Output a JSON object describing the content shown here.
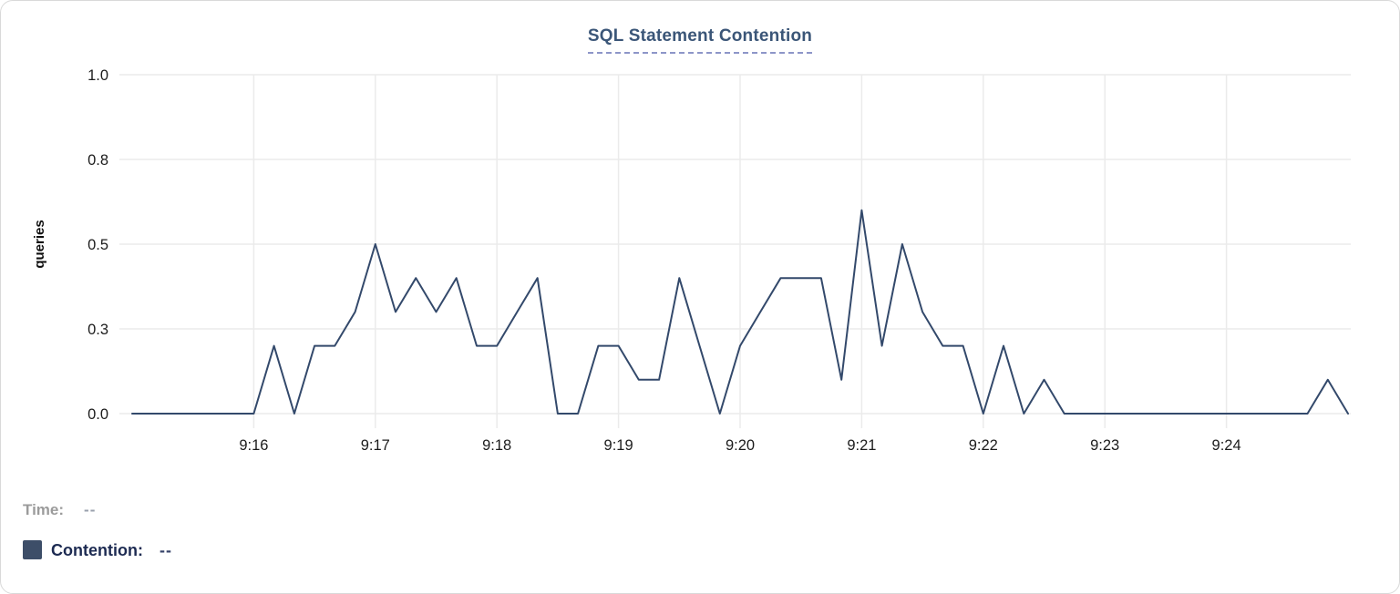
{
  "card": {
    "title": "SQL Statement Contention"
  },
  "legend": {
    "time_label": "Time:",
    "time_value": "--",
    "contention_label": "Contention:",
    "contention_value": "--",
    "swatch_color": "#3d4e68"
  },
  "colors": {
    "line": "#33496b",
    "grid": "#ebebeb",
    "tick_text": "#1c1c1c",
    "axis_label_text": "#0f0f0f",
    "title": "#3b5678",
    "title_underline": "#8d96c8"
  },
  "chart_data": {
    "type": "line",
    "title": "SQL Statement Contention",
    "xlabel": "",
    "ylabel": "queries",
    "ylim": [
      0,
      1
    ],
    "grid": true,
    "legend_position": "bottom-left",
    "x": [
      "9:15:00",
      "9:15:10",
      "9:15:20",
      "9:15:30",
      "9:15:40",
      "9:15:50",
      "9:16:00",
      "9:16:10",
      "9:16:20",
      "9:16:30",
      "9:16:40",
      "9:16:50",
      "9:17:00",
      "9:17:10",
      "9:17:20",
      "9:17:30",
      "9:17:40",
      "9:17:50",
      "9:18:00",
      "9:18:10",
      "9:18:20",
      "9:18:30",
      "9:18:40",
      "9:18:50",
      "9:19:00",
      "9:19:10",
      "9:19:20",
      "9:19:30",
      "9:19:40",
      "9:19:50",
      "9:20:00",
      "9:20:10",
      "9:20:20",
      "9:20:30",
      "9:20:40",
      "9:20:50",
      "9:21:00",
      "9:21:10",
      "9:21:20",
      "9:21:30",
      "9:21:40",
      "9:21:50",
      "9:22:00",
      "9:22:10",
      "9:22:20",
      "9:22:30",
      "9:22:40",
      "9:22:50",
      "9:23:00",
      "9:23:10",
      "9:23:20",
      "9:23:30",
      "9:23:40",
      "9:23:50",
      "9:24:00",
      "9:24:10",
      "9:24:20",
      "9:24:30",
      "9:24:40",
      "9:24:50",
      "9:25:00"
    ],
    "series": [
      {
        "name": "Contention",
        "color": "#33496b",
        "values": [
          0,
          0,
          0,
          0,
          0,
          0,
          0,
          0.2,
          0,
          0.2,
          0.2,
          0.3,
          0.5,
          0.3,
          0.4,
          0.3,
          0.4,
          0.2,
          0.2,
          0.3,
          0.4,
          0,
          0,
          0.2,
          0.2,
          0.1,
          0.1,
          0.4,
          0.2,
          0,
          0.2,
          0.3,
          0.4,
          0.4,
          0.4,
          0.1,
          0.6,
          0.2,
          0.5,
          0.3,
          0.2,
          0.2,
          0,
          0.2,
          0,
          0.1,
          0,
          0,
          0,
          0,
          0,
          0,
          0,
          0,
          0,
          0,
          0,
          0,
          0,
          0.1,
          0
        ]
      }
    ],
    "x_tick_labels": [
      "9:16",
      "9:17",
      "9:18",
      "9:19",
      "9:20",
      "9:21",
      "9:22",
      "9:23",
      "9:24"
    ],
    "y_ticks": [
      {
        "value": 0.0,
        "label": "0.0"
      },
      {
        "value": 0.25,
        "label": "0.3"
      },
      {
        "value": 0.5,
        "label": "0.5"
      },
      {
        "value": 0.75,
        "label": "0.8"
      },
      {
        "value": 1.0,
        "label": "1.0"
      }
    ]
  }
}
